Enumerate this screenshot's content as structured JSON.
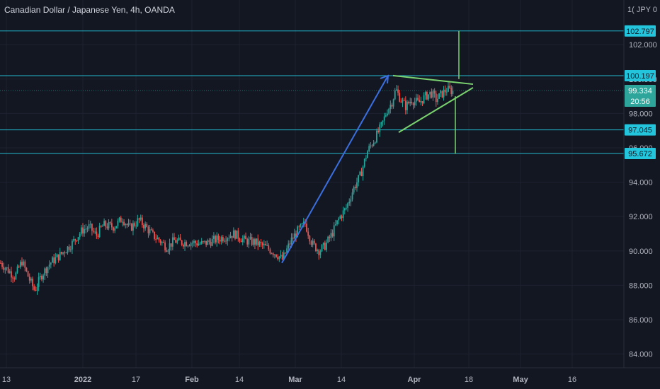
{
  "header": {
    "title": "Canadian Dollar / Japanese Yen, 4h, OANDA",
    "currency_label": "JPY",
    "currency_prefix": "1(",
    "currency_suffix": "0"
  },
  "colors": {
    "background": "#131722",
    "up_candle": "#26a69a",
    "down_candle": "#ef5350",
    "level_line": "#22b8cf",
    "level_tag_bg": "#22c5dc",
    "arrow": "#3b6fe0",
    "triangle": "#7bd36f",
    "price_tag_bg": "#2ea59a",
    "grid": "#1e2230"
  },
  "chart_data": {
    "type": "candlestick",
    "symbol": "CADJPY",
    "y_ticks": [
      102,
      100,
      98,
      96,
      94,
      92,
      90,
      88,
      86,
      84
    ],
    "y_tick_labels": [
      "102.000",
      "100.000",
      "98.000",
      "96.000",
      "94.000",
      "92.000",
      "90.000",
      "88.000",
      "86.000",
      "84.000"
    ],
    "y_range": [
      83.2,
      104.6
    ],
    "x_tick_labels": [
      "13",
      "2022",
      "17",
      "Feb",
      "14",
      "Mar",
      "14",
      "Apr",
      "18",
      "May",
      "16"
    ],
    "x_tick_bold": [
      false,
      true,
      false,
      true,
      false,
      true,
      false,
      true,
      false,
      true,
      false
    ],
    "horizontal_levels": [
      102.797,
      100.197,
      97.045,
      95.672
    ],
    "level_labels": [
      "102.797",
      "100.197",
      "97.045",
      "95.672"
    ],
    "current_price": 99.334,
    "current_price_label": "99.334",
    "countdown_label": "20:56",
    "price_path": [
      [
        0,
        89.3
      ],
      [
        10,
        88.9
      ],
      [
        20,
        88.5
      ],
      [
        30,
        89.4
      ],
      [
        40,
        88.4
      ],
      [
        48,
        87.7
      ],
      [
        58,
        88.6
      ],
      [
        70,
        89.3
      ],
      [
        85,
        89.8
      ],
      [
        100,
        90.4
      ],
      [
        115,
        91.2
      ],
      [
        125,
        91.4
      ],
      [
        135,
        90.9
      ],
      [
        145,
        91.5
      ],
      [
        160,
        91.4
      ],
      [
        172,
        91.9
      ],
      [
        182,
        91.3
      ],
      [
        195,
        91.8
      ],
      [
        205,
        91.4
      ],
      [
        215,
        90.9
      ],
      [
        225,
        90.6
      ],
      [
        235,
        90.2
      ],
      [
        245,
        90.6
      ],
      [
        255,
        90.5
      ],
      [
        270,
        90.5
      ],
      [
        285,
        90.4
      ],
      [
        300,
        90.6
      ],
      [
        315,
        90.8
      ],
      [
        330,
        91.0
      ],
      [
        345,
        90.6
      ],
      [
        360,
        90.5
      ],
      [
        375,
        90.2
      ],
      [
        390,
        89.8
      ],
      [
        398,
        89.5
      ],
      [
        410,
        90.6
      ],
      [
        420,
        91.2
      ],
      [
        430,
        91.6
      ],
      [
        440,
        90.4
      ],
      [
        450,
        90.0
      ],
      [
        458,
        90.3
      ],
      [
        468,
        91.0
      ],
      [
        478,
        91.9
      ],
      [
        488,
        92.5
      ],
      [
        498,
        93.6
      ],
      [
        508,
        94.4
      ],
      [
        518,
        95.8
      ],
      [
        528,
        96.5
      ],
      [
        538,
        97.3
      ],
      [
        546,
        98.2
      ],
      [
        552,
        98.6
      ],
      [
        558,
        99.4
      ],
      [
        565,
        98.8
      ],
      [
        572,
        98.4
      ],
      [
        580,
        98.8
      ],
      [
        590,
        98.6
      ],
      [
        600,
        99.0
      ],
      [
        608,
        99.2
      ],
      [
        615,
        98.8
      ],
      [
        622,
        99.1
      ],
      [
        630,
        99.4
      ],
      [
        638,
        99.3
      ]
    ],
    "annotations": {
      "arrow": {
        "from": [
          398,
          89.3
        ],
        "to": [
          548,
          100.2
        ]
      },
      "triangle_upper": {
        "from": [
          555,
          100.2
        ],
        "to": [
          668,
          99.7
        ]
      },
      "triangle_lower": {
        "from": [
          563,
          96.9
        ],
        "to": [
          668,
          99.5
        ]
      },
      "target_up": {
        "x": 648,
        "from": 100.0,
        "to": 102.8
      },
      "target_down": {
        "x": 643,
        "from": 99.0,
        "to": 95.65
      }
    }
  }
}
